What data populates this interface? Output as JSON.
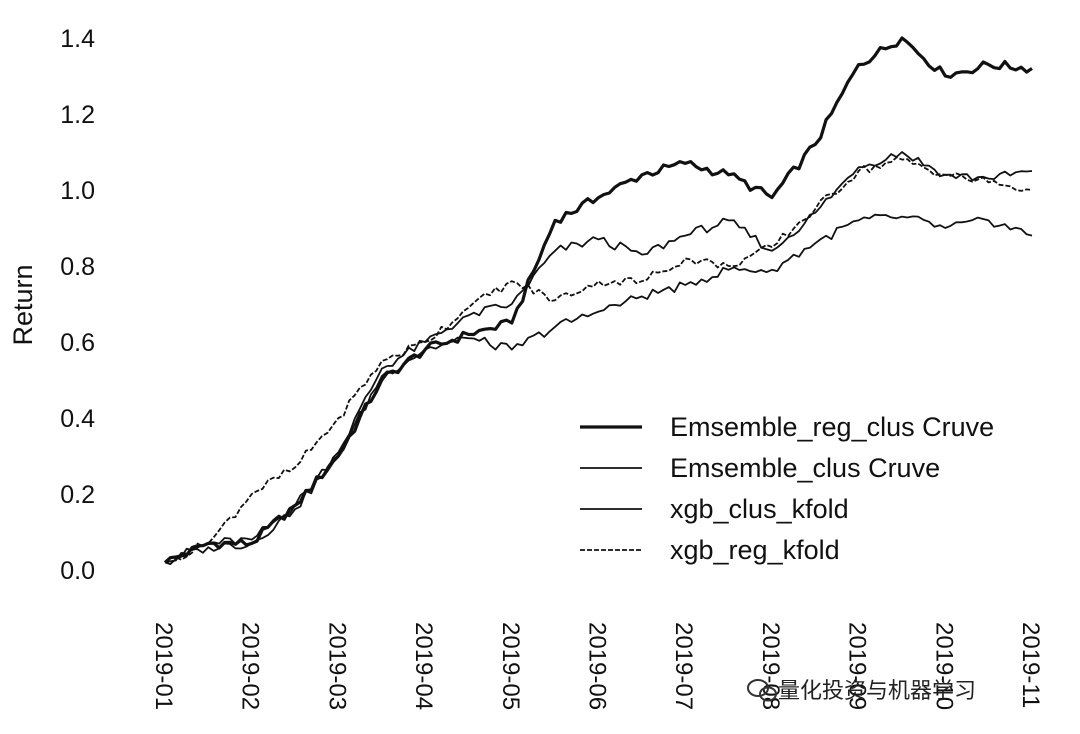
{
  "chart_data": {
    "type": "line",
    "xlabel": "",
    "ylabel": "Return",
    "ylim": [
      0.0,
      1.4
    ],
    "yticks": [
      "0.0",
      "0.2",
      "0.4",
      "0.6",
      "0.8",
      "1.0",
      "1.2",
      "1.4"
    ],
    "xticks": [
      "2019-01",
      "2019-02",
      "2019-03",
      "2019-04",
      "2019-05",
      "2019-06",
      "2019-07",
      "2019-08",
      "2019-09",
      "2019-10",
      "2019-11"
    ],
    "x": [
      "2019-01",
      "2019-01-15",
      "2019-02",
      "2019-02-15",
      "2019-03",
      "2019-03-15",
      "2019-04",
      "2019-04-15",
      "2019-05",
      "2019-05-15",
      "2019-06",
      "2019-06-15",
      "2019-07",
      "2019-07-15",
      "2019-08",
      "2019-08-15",
      "2019-09",
      "2019-09-15",
      "2019-10",
      "2019-10-15",
      "2019-11"
    ],
    "legend_position": "lower-right",
    "grid": false,
    "series": [
      {
        "name": "Emsemble_reg_clus Cruve",
        "style": "thick",
        "values": [
          0.02,
          0.07,
          0.07,
          0.17,
          0.3,
          0.5,
          0.58,
          0.62,
          0.65,
          0.92,
          0.98,
          1.04,
          1.07,
          1.04,
          0.98,
          1.12,
          1.33,
          1.4,
          1.3,
          1.33,
          1.32
        ]
      },
      {
        "name": "Emsemble_clus Cruve",
        "style": "thin",
        "values": [
          0.02,
          0.07,
          0.08,
          0.17,
          0.31,
          0.53,
          0.6,
          0.67,
          0.7,
          0.84,
          0.87,
          0.83,
          0.88,
          0.92,
          0.84,
          0.94,
          1.06,
          1.1,
          1.04,
          1.03,
          1.05
        ]
      },
      {
        "name": "xgb_clus_kfold",
        "style": "thin",
        "values": [
          0.02,
          0.06,
          0.07,
          0.16,
          0.3,
          0.51,
          0.58,
          0.61,
          0.58,
          0.64,
          0.68,
          0.72,
          0.75,
          0.79,
          0.79,
          0.86,
          0.92,
          0.93,
          0.9,
          0.92,
          0.88
        ]
      },
      {
        "name": "xgb_reg_kfold",
        "style": "dotted",
        "values": [
          0.02,
          0.07,
          0.2,
          0.27,
          0.4,
          0.55,
          0.6,
          0.69,
          0.76,
          0.71,
          0.76,
          0.76,
          0.82,
          0.8,
          0.85,
          0.95,
          1.05,
          1.08,
          1.04,
          1.02,
          1.0
        ]
      }
    ]
  },
  "watermark": {
    "text": "量化投资与机器学习",
    "icon": "wechat-icon"
  }
}
